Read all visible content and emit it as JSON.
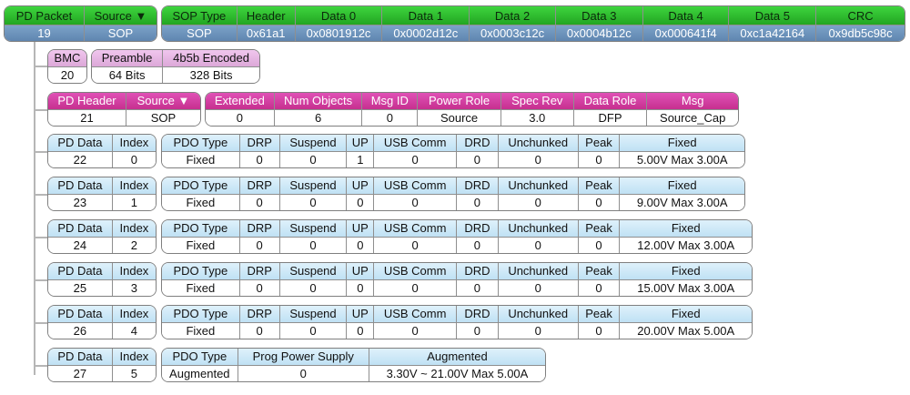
{
  "packet": {
    "headers": [
      "PD Packet",
      "Source ▼"
    ],
    "values": [
      "19",
      "SOP"
    ]
  },
  "sop": {
    "headers": [
      "SOP Type",
      "Header",
      "Data 0",
      "Data 1",
      "Data 2",
      "Data 3",
      "Data 4",
      "Data 5",
      "CRC"
    ],
    "values": [
      "SOP",
      "0x61a1",
      "0x0801912c",
      "0x0002d12c",
      "0x0003c12c",
      "0x0004b12c",
      "0x000641f4",
      "0xc1a42164",
      "0x9db5c98c"
    ]
  },
  "bmc": {
    "header": "BMC",
    "value": "20"
  },
  "preamble": {
    "headers": [
      "Preamble",
      "4b5b Encoded"
    ],
    "values": [
      "64 Bits",
      "328 Bits"
    ]
  },
  "pd_header": {
    "headers": [
      "PD Header",
      "Source ▼"
    ],
    "values": [
      "21",
      "SOP"
    ]
  },
  "pd_header_fields": {
    "headers": [
      "Extended",
      "Num Objects",
      "Msg ID",
      "Power Role",
      "Spec Rev",
      "Data Role",
      "Msg"
    ],
    "values": [
      "0",
      "6",
      "0",
      "Source",
      "3.0",
      "DFP",
      "Source_Cap"
    ]
  },
  "pdo_labels": {
    "pd_data": "PD Data",
    "index": "Index"
  },
  "fixed_headers": [
    "PDO Type",
    "DRP",
    "Suspend",
    "UP",
    "USB Comm",
    "DRD",
    "Unchunked",
    "Peak",
    "Fixed"
  ],
  "fixed_pdos": [
    {
      "row": "22",
      "index": "0",
      "values": [
        "Fixed",
        "0",
        "0",
        "1",
        "0",
        "0",
        "0",
        "0",
        "5.00V Max 3.00A"
      ]
    },
    {
      "row": "23",
      "index": "1",
      "values": [
        "Fixed",
        "0",
        "0",
        "0",
        "0",
        "0",
        "0",
        "0",
        "9.00V Max 3.00A"
      ]
    },
    {
      "row": "24",
      "index": "2",
      "values": [
        "Fixed",
        "0",
        "0",
        "0",
        "0",
        "0",
        "0",
        "0",
        "12.00V Max 3.00A"
      ]
    },
    {
      "row": "25",
      "index": "3",
      "values": [
        "Fixed",
        "0",
        "0",
        "0",
        "0",
        "0",
        "0",
        "0",
        "15.00V Max 3.00A"
      ]
    },
    {
      "row": "26",
      "index": "4",
      "values": [
        "Fixed",
        "0",
        "0",
        "0",
        "0",
        "0",
        "0",
        "0",
        "20.00V Max 5.00A"
      ]
    }
  ],
  "aug_pdo": {
    "row": "27",
    "index": "5",
    "headers": [
      "PDO Type",
      "Prog Power Supply",
      "Augmented"
    ],
    "values": [
      "Augmented",
      "0",
      "3.30V ~ 21.00V Max 5.00A"
    ]
  },
  "colors": {
    "green_header": "#2fbf2f",
    "blue_value": "#6b93bb",
    "pink_header": "#e8b8e6",
    "magenta_header": "#d23ea4",
    "lightblue_header": "#cfe9f8"
  }
}
